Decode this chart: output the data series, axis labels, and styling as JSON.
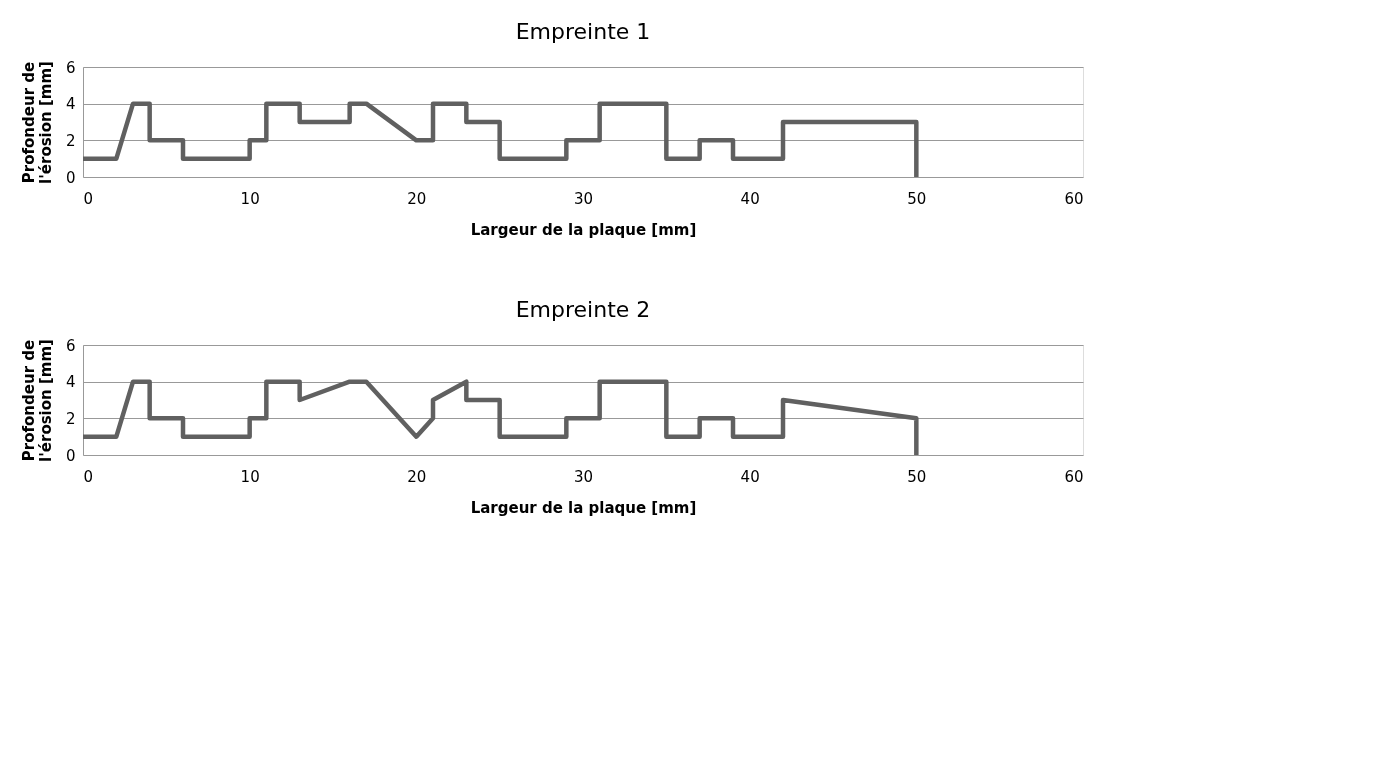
{
  "chart_data": [
    {
      "type": "line",
      "title": "Empreinte 1",
      "xlabel": "Largeur de la plaque [mm]",
      "ylabel": "Profondeur de l'érosion [mm]",
      "xlim": [
        0,
        60
      ],
      "xticks": [
        0,
        10,
        20,
        30,
        40,
        50,
        60
      ],
      "ylim": [
        0,
        6
      ],
      "yticks": [
        0,
        2,
        4,
        6
      ],
      "grid": "y",
      "line_style": "solid",
      "marker": "none",
      "series": [
        {
          "color": "#606060",
          "x": [
            0,
            2,
            3,
            4,
            4,
            6,
            6,
            10,
            10,
            11,
            11,
            13,
            13,
            16,
            16,
            17,
            20,
            21,
            21,
            23,
            23,
            25,
            25,
            29,
            29,
            31,
            31,
            35,
            35,
            37,
            37,
            39,
            39,
            42,
            42,
            50,
            50
          ],
          "values": [
            1,
            1,
            4,
            4,
            2,
            2,
            1,
            1,
            2,
            2,
            4,
            4,
            3,
            3,
            4,
            4,
            2,
            2,
            4,
            4,
            3,
            3,
            1,
            1,
            2,
            2,
            4,
            4,
            1,
            1,
            2,
            2,
            1,
            1,
            3,
            3,
            0
          ]
        }
      ]
    },
    {
      "type": "line",
      "title": "Empreinte 2",
      "xlabel": "Largeur de la plaque [mm]",
      "ylabel": "Profondeur de l'érosion [mm]",
      "xlim": [
        0,
        60
      ],
      "xticks": [
        0,
        10,
        20,
        30,
        40,
        50,
        60
      ],
      "ylim": [
        0,
        6
      ],
      "yticks": [
        0,
        2,
        4,
        6
      ],
      "grid": "y",
      "line_style": "solid",
      "marker": "none",
      "series": [
        {
          "color": "#606060",
          "x": [
            0,
            2,
            3,
            4,
            4,
            6,
            6,
            10,
            10,
            11,
            11,
            13,
            13,
            16,
            17,
            20,
            21,
            21,
            23,
            23,
            25,
            25,
            29,
            29,
            31,
            31,
            35,
            35,
            37,
            37,
            39,
            39,
            42,
            42,
            50,
            50
          ],
          "values": [
            1,
            1,
            4,
            4,
            2,
            2,
            1,
            1,
            2,
            2,
            4,
            4,
            3,
            4,
            4,
            1,
            2,
            3,
            4,
            3,
            3,
            1,
            1,
            2,
            2,
            4,
            4,
            1,
            1,
            2,
            2,
            1,
            1,
            3,
            2,
            0
          ]
        }
      ]
    }
  ]
}
